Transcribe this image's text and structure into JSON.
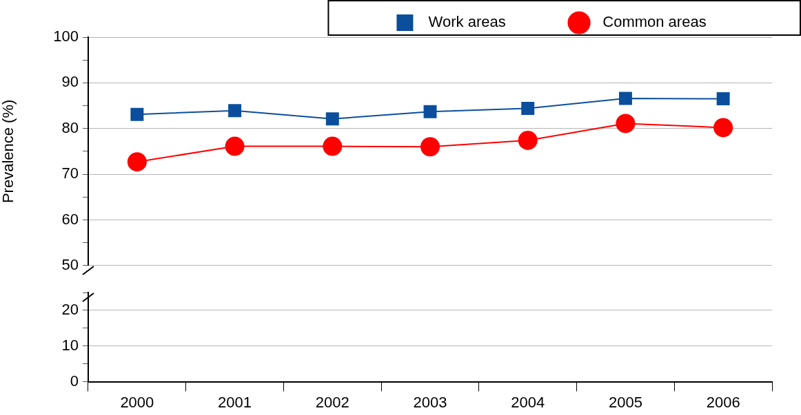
{
  "chart_data": [
    {
      "type": "line",
      "categories": [
        "2000",
        "2001",
        "2002",
        "2003",
        "2004",
        "2005",
        "2006"
      ],
      "series": [
        {
          "name": "Work areas",
          "color": "#0b4f9c",
          "marker": "square",
          "values": [
            83.1,
            83.9,
            82.1,
            83.7,
            84.4,
            86.6,
            86.5
          ]
        },
        {
          "name": "Common areas",
          "color": "#ff0000",
          "marker": "circle",
          "values": [
            72.7,
            76.1,
            76.1,
            76.0,
            77.4,
            81.1,
            80.2
          ]
        }
      ],
      "ylabel": "Prevalence (%)",
      "ylim": [
        50,
        100
      ],
      "yticks": [
        50,
        {
          "value": 55,
          "label": null
        },
        60,
        {
          "value": 65,
          "label": null
        },
        70,
        {
          "value": 75,
          "label": null
        },
        80,
        {
          "value": 85,
          "label": null
        },
        90,
        {
          "value": 95,
          "label": null
        },
        100
      ],
      "grid": "y",
      "legend": "top",
      "tick_labels": "y",
      "line_style": "solid"
    },
    {
      "type": "line",
      "categories": [
        "2000",
        "2001",
        "2002",
        "2003",
        "2004",
        "2005",
        "2006"
      ],
      "values": [
        null,
        null,
        null,
        null,
        null,
        null,
        null
      ],
      "ylim": [
        0,
        25
      ],
      "yticks": [
        0,
        {
          "value": 5,
          "label": null
        },
        10,
        {
          "value": 15,
          "label": null
        },
        20,
        {
          "value": 25,
          "label": null
        }
      ],
      "grid": "y"
    }
  ]
}
